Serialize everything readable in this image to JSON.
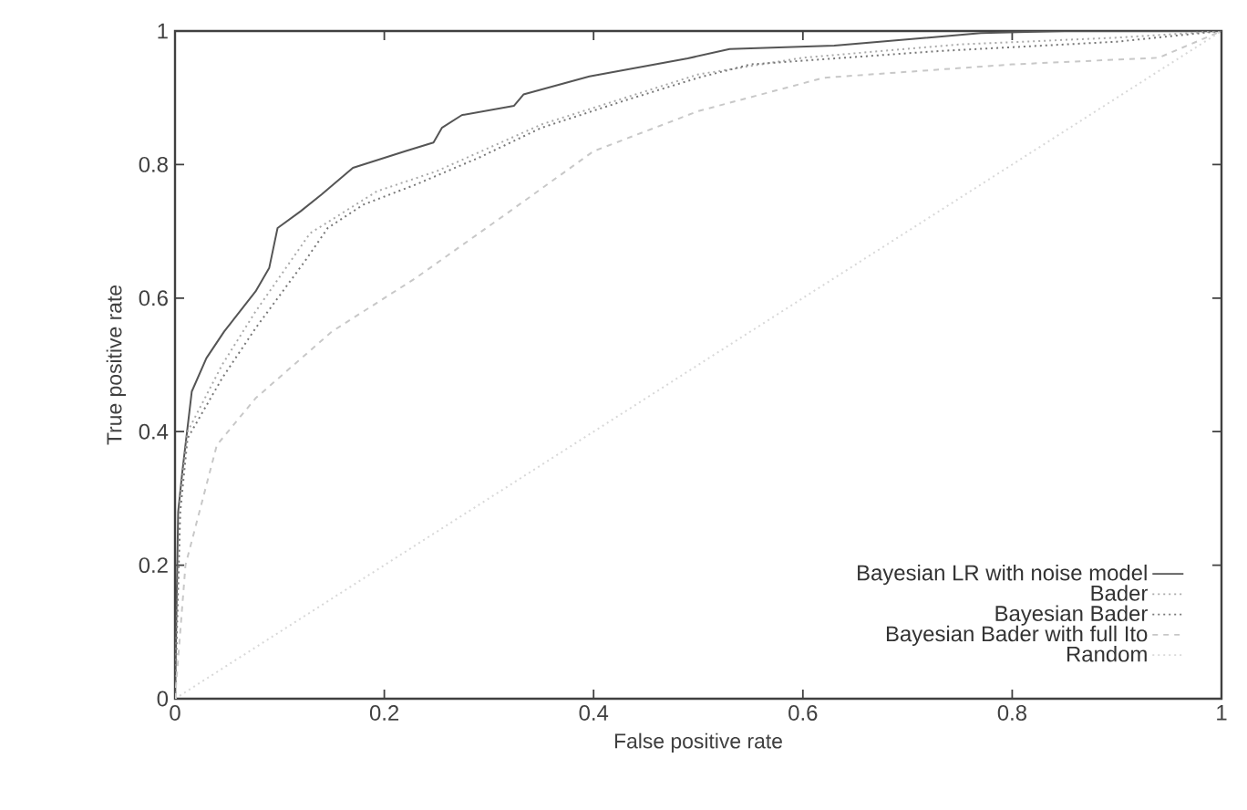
{
  "chart_data": {
    "type": "line",
    "xlabel": "False positive rate",
    "ylabel": "True positive rate",
    "xlim": [
      0,
      1
    ],
    "ylim": [
      0,
      1
    ],
    "xticks": [
      0,
      0.2,
      0.4,
      0.6,
      0.8,
      1
    ],
    "yticks": [
      0,
      0.2,
      0.4,
      0.6,
      0.8,
      1
    ],
    "legend": "bottom right",
    "grid": false,
    "series": [
      {
        "name": "Bayesian LR with noise model",
        "color": "#555555",
        "line_style": "solid",
        "x": [
          0,
          0.003,
          0.007,
          0.016,
          0.03,
          0.047,
          0.077,
          0.09,
          0.098,
          0.12,
          0.14,
          0.17,
          0.22,
          0.247,
          0.255,
          0.274,
          0.324,
          0.333,
          0.396,
          0.49,
          0.53,
          0.63,
          0.77,
          0.85,
          1
        ],
        "values": [
          0,
          0.28,
          0.34,
          0.46,
          0.51,
          0.55,
          0.61,
          0.645,
          0.705,
          0.73,
          0.755,
          0.795,
          0.82,
          0.833,
          0.855,
          0.874,
          0.888,
          0.905,
          0.932,
          0.959,
          0.973,
          0.978,
          0.997,
          1,
          1
        ]
      },
      {
        "name": "Bader",
        "color": "#aaaaaa",
        "line_style": "dotted",
        "x": [
          0,
          0.005,
          0.012,
          0.045,
          0.077,
          0.129,
          0.193,
          0.25,
          0.35,
          0.43,
          0.5,
          0.6,
          0.75,
          0.9,
          1
        ],
        "values": [
          0,
          0.3,
          0.4,
          0.5,
          0.58,
          0.697,
          0.76,
          0.79,
          0.86,
          0.9,
          0.935,
          0.96,
          0.98,
          0.99,
          1
        ]
      },
      {
        "name": "Bayesian Bader",
        "color": "#777777",
        "line_style": "dotted",
        "x": [
          0,
          0.005,
          0.012,
          0.045,
          0.077,
          0.124,
          0.146,
          0.18,
          0.23,
          0.29,
          0.35,
          0.43,
          0.5,
          0.55,
          0.73,
          0.9,
          1
        ],
        "values": [
          0,
          0.28,
          0.39,
          0.48,
          0.555,
          0.655,
          0.705,
          0.74,
          0.77,
          0.81,
          0.855,
          0.896,
          0.93,
          0.95,
          0.97,
          0.984,
          1
        ]
      },
      {
        "name": "Bayesian Bader with full Ito",
        "color": "#c8c8c8",
        "line_style": "dashed",
        "x": [
          0,
          0.01,
          0.04,
          0.077,
          0.15,
          0.23,
          0.32,
          0.4,
          0.5,
          0.62,
          0.8,
          0.94,
          1
        ],
        "values": [
          0,
          0.2,
          0.38,
          0.45,
          0.55,
          0.63,
          0.73,
          0.82,
          0.88,
          0.93,
          0.95,
          0.96,
          1
        ]
      },
      {
        "name": "Random",
        "color": "#d8d8d8",
        "line_style": "dotted",
        "x": [
          0,
          1
        ],
        "values": [
          0,
          1
        ]
      }
    ]
  }
}
